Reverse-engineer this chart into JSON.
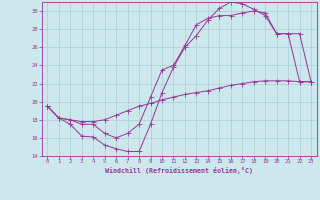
{
  "xlabel": "Windchill (Refroidissement éolien,°C)",
  "bg_color": "#cce8ec",
  "grid_color": "#aacdd5",
  "line_color": "#993399",
  "xlim": [
    -0.5,
    23.5
  ],
  "ylim": [
    14,
    31
  ],
  "yticks": [
    14,
    16,
    18,
    20,
    22,
    24,
    26,
    28,
    30
  ],
  "xticks": [
    0,
    1,
    2,
    3,
    4,
    5,
    6,
    7,
    8,
    9,
    10,
    11,
    12,
    13,
    14,
    15,
    16,
    17,
    18,
    19,
    20,
    21,
    22,
    23
  ],
  "line1_x": [
    0,
    1,
    2,
    3,
    4,
    5,
    6,
    7,
    8,
    9,
    10,
    11,
    12,
    13,
    14,
    15,
    16,
    17,
    18,
    19,
    20,
    21,
    22,
    23
  ],
  "line1_y": [
    19.5,
    18.2,
    17.5,
    16.2,
    16.1,
    15.2,
    14.8,
    14.5,
    14.5,
    17.5,
    21.0,
    23.8,
    26.0,
    27.3,
    29.0,
    30.3,
    31.0,
    30.8,
    30.2,
    29.5,
    27.5,
    27.5,
    22.2,
    22.2
  ],
  "line2_x": [
    0,
    1,
    2,
    3,
    4,
    5,
    6,
    7,
    8,
    9,
    10,
    11,
    12,
    13,
    14,
    15,
    16,
    17,
    18,
    19,
    20,
    21,
    22,
    23
  ],
  "line2_y": [
    19.5,
    18.2,
    18.0,
    17.5,
    17.5,
    16.5,
    16.0,
    16.5,
    17.5,
    20.5,
    23.5,
    24.0,
    26.2,
    28.5,
    29.2,
    29.5,
    29.5,
    29.8,
    30.0,
    29.8,
    27.5,
    27.5,
    27.5,
    22.2
  ],
  "line3_x": [
    0,
    1,
    2,
    3,
    4,
    5,
    6,
    7,
    8,
    9,
    10,
    11,
    12,
    13,
    14,
    15,
    16,
    17,
    18,
    19,
    20,
    21,
    22,
    23
  ],
  "line3_y": [
    19.5,
    18.2,
    18.0,
    17.8,
    17.8,
    18.0,
    18.5,
    19.0,
    19.5,
    19.8,
    20.2,
    20.5,
    20.8,
    21.0,
    21.2,
    21.5,
    21.8,
    22.0,
    22.2,
    22.3,
    22.3,
    22.3,
    22.2,
    22.2
  ],
  "marker_size": 1.8,
  "line_width": 0.7,
  "tick_fontsize": 4.0,
  "xlabel_fontsize": 4.8
}
